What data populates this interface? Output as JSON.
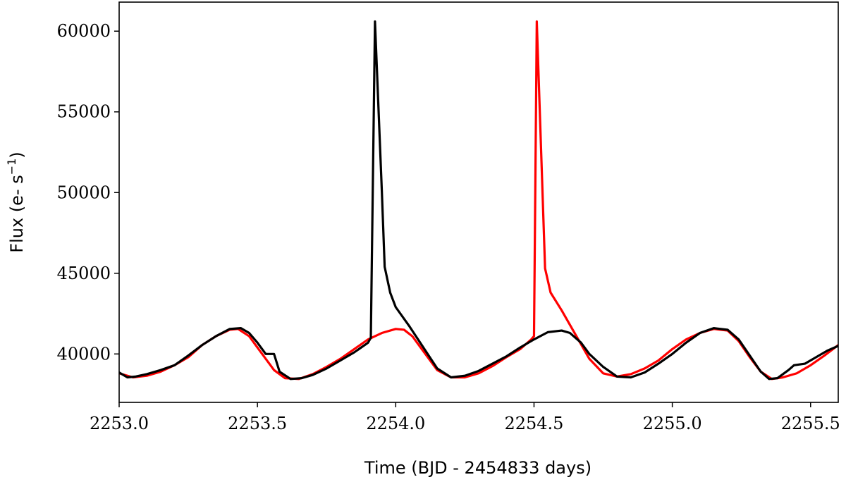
{
  "chart_data": {
    "type": "line",
    "title": "",
    "xlabel": "Time (BJD - 2454833 days)",
    "ylabel_main": "Flux (e- s",
    "ylabel_sup": "−1",
    "ylabel_close": ")",
    "xlim": [
      2253.0,
      2255.6
    ],
    "ylim": [
      37000,
      61800
    ],
    "xticks": [
      2253.0,
      2253.5,
      2254.0,
      2254.5,
      2255.0,
      2255.5
    ],
    "xtick_labels": [
      "2253.0",
      "2253.5",
      "2254.0",
      "2254.5",
      "2255.0",
      "2255.5"
    ],
    "yticks": [
      40000,
      45000,
      50000,
      55000,
      60000
    ],
    "ytick_labels": [
      "40000",
      "45000",
      "50000",
      "55000",
      "60000"
    ],
    "grid": false,
    "series": [
      {
        "color": "#ff0000",
        "points": [
          [
            2253.0,
            38800
          ],
          [
            2253.05,
            38550
          ],
          [
            2253.1,
            38650
          ],
          [
            2253.15,
            38900
          ],
          [
            2253.2,
            39300
          ],
          [
            2253.25,
            39800
          ],
          [
            2253.3,
            40550
          ],
          [
            2253.35,
            41100
          ],
          [
            2253.4,
            41500
          ],
          [
            2253.43,
            41550
          ],
          [
            2253.47,
            41100
          ],
          [
            2253.5,
            40400
          ],
          [
            2253.53,
            39700
          ],
          [
            2253.56,
            39000
          ],
          [
            2253.6,
            38500
          ],
          [
            2253.65,
            38450
          ],
          [
            2253.7,
            38750
          ],
          [
            2253.75,
            39200
          ],
          [
            2253.8,
            39700
          ],
          [
            2253.85,
            40300
          ],
          [
            2253.9,
            40900
          ],
          [
            2253.95,
            41300
          ],
          [
            2254.0,
            41550
          ],
          [
            2254.03,
            41500
          ],
          [
            2254.06,
            41100
          ],
          [
            2254.09,
            40400
          ],
          [
            2254.12,
            39700
          ],
          [
            2254.15,
            39000
          ],
          [
            2254.2,
            38550
          ],
          [
            2254.25,
            38550
          ],
          [
            2254.3,
            38800
          ],
          [
            2254.35,
            39250
          ],
          [
            2254.4,
            39800
          ],
          [
            2254.45,
            40300
          ],
          [
            2254.49,
            40900
          ],
          [
            2254.5,
            41100
          ],
          [
            2254.51,
            60600
          ],
          [
            2254.54,
            45300
          ],
          [
            2254.56,
            43800
          ],
          [
            2254.6,
            42700
          ],
          [
            2254.65,
            41200
          ],
          [
            2254.7,
            39700
          ],
          [
            2254.75,
            38800
          ],
          [
            2254.8,
            38600
          ],
          [
            2254.85,
            38750
          ],
          [
            2254.9,
            39100
          ],
          [
            2254.95,
            39600
          ],
          [
            2255.0,
            40300
          ],
          [
            2255.05,
            40900
          ],
          [
            2255.1,
            41300
          ],
          [
            2255.15,
            41550
          ],
          [
            2255.2,
            41450
          ],
          [
            2255.24,
            40800
          ],
          [
            2255.28,
            39800
          ],
          [
            2255.32,
            38900
          ],
          [
            2255.36,
            38450
          ],
          [
            2255.4,
            38550
          ],
          [
            2255.45,
            38800
          ],
          [
            2255.5,
            39300
          ],
          [
            2255.55,
            39900
          ],
          [
            2255.6,
            40550
          ]
        ]
      },
      {
        "color": "#000000",
        "points": [
          [
            2253.0,
            38850
          ],
          [
            2253.03,
            38550
          ],
          [
            2253.06,
            38600
          ],
          [
            2253.1,
            38750
          ],
          [
            2253.15,
            39000
          ],
          [
            2253.2,
            39300
          ],
          [
            2253.25,
            39900
          ],
          [
            2253.3,
            40550
          ],
          [
            2253.35,
            41100
          ],
          [
            2253.4,
            41550
          ],
          [
            2253.44,
            41600
          ],
          [
            2253.47,
            41300
          ],
          [
            2253.5,
            40700
          ],
          [
            2253.53,
            40000
          ],
          [
            2253.56,
            40000
          ],
          [
            2253.58,
            38900
          ],
          [
            2253.62,
            38450
          ],
          [
            2253.66,
            38500
          ],
          [
            2253.7,
            38700
          ],
          [
            2253.75,
            39100
          ],
          [
            2253.8,
            39600
          ],
          [
            2253.85,
            40100
          ],
          [
            2253.9,
            40700
          ],
          [
            2253.91,
            41000
          ],
          [
            2253.925,
            60600
          ],
          [
            2253.95,
            50000
          ],
          [
            2253.96,
            45400
          ],
          [
            2253.98,
            43800
          ],
          [
            2254.0,
            42900
          ],
          [
            2254.05,
            41700
          ],
          [
            2254.1,
            40400
          ],
          [
            2254.15,
            39100
          ],
          [
            2254.2,
            38550
          ],
          [
            2254.25,
            38650
          ],
          [
            2254.3,
            38950
          ],
          [
            2254.35,
            39400
          ],
          [
            2254.4,
            39850
          ],
          [
            2254.45,
            40400
          ],
          [
            2254.5,
            40900
          ],
          [
            2254.55,
            41350
          ],
          [
            2254.6,
            41450
          ],
          [
            2254.63,
            41300
          ],
          [
            2254.67,
            40700
          ],
          [
            2254.7,
            40000
          ],
          [
            2254.75,
            39200
          ],
          [
            2254.8,
            38600
          ],
          [
            2254.85,
            38550
          ],
          [
            2254.9,
            38850
          ],
          [
            2254.95,
            39400
          ],
          [
            2255.0,
            40000
          ],
          [
            2255.05,
            40700
          ],
          [
            2255.1,
            41300
          ],
          [
            2255.15,
            41600
          ],
          [
            2255.2,
            41500
          ],
          [
            2255.24,
            40900
          ],
          [
            2255.28,
            39900
          ],
          [
            2255.32,
            38900
          ],
          [
            2255.35,
            38450
          ],
          [
            2255.38,
            38500
          ],
          [
            2255.42,
            39000
          ],
          [
            2255.44,
            39300
          ],
          [
            2255.48,
            39400
          ],
          [
            2255.52,
            39800
          ],
          [
            2255.56,
            40200
          ],
          [
            2255.6,
            40500
          ]
        ]
      }
    ]
  }
}
